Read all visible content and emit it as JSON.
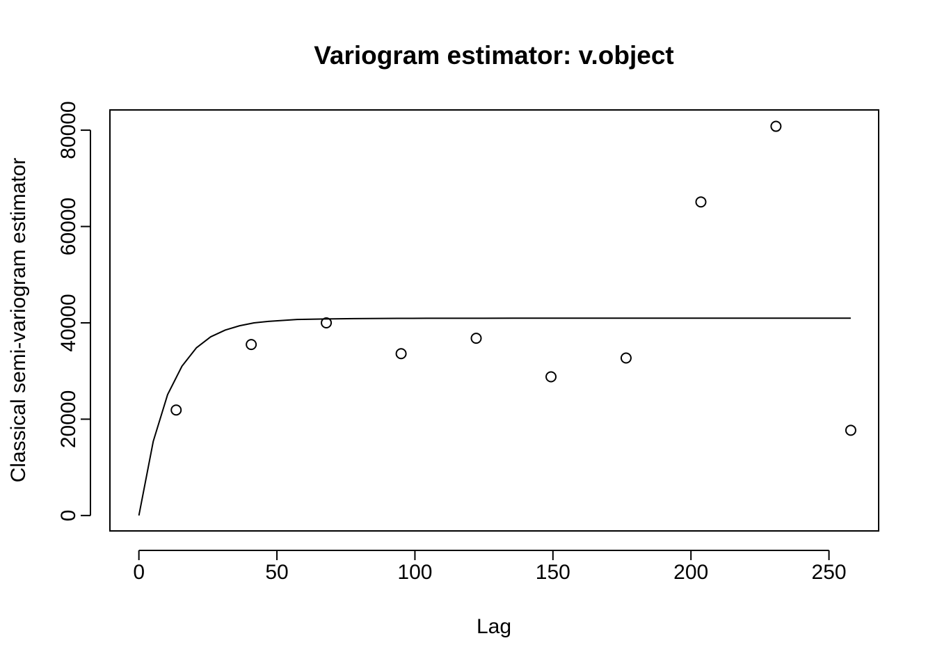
{
  "chart_data": {
    "type": "scatter",
    "title": "Variogram estimator: v.object",
    "xlabel": "Lag",
    "ylabel": "Classical semi-variogram estimator",
    "xlim": [
      -10.5,
      268
    ],
    "ylim": [
      -3200,
      84200
    ],
    "xticks": [
      0,
      50,
      100,
      150,
      200,
      250
    ],
    "yticks": [
      0,
      20000,
      40000,
      60000,
      80000
    ],
    "xtick_labels": [
      "0",
      "50",
      "100",
      "150",
      "200",
      "250"
    ],
    "ytick_labels": [
      "0",
      "20000",
      "40000",
      "60000",
      "80000"
    ],
    "grid": false,
    "box": true,
    "points": {
      "name": "",
      "marker": "open-circle",
      "x": [
        13.5,
        40.7,
        67.9,
        95.0,
        122.2,
        149.3,
        176.5,
        203.6,
        230.8,
        257.9
      ],
      "y": [
        21900,
        35500,
        40000,
        33600,
        36800,
        28800,
        32700,
        65100,
        80800,
        17700
      ]
    },
    "fitted_line": {
      "name": "",
      "x": [
        0,
        5.2,
        10.4,
        15.6,
        20.8,
        26.0,
        31.3,
        36.5,
        41.7,
        46.9,
        52.1,
        57.3,
        62.5,
        67.7,
        72.9,
        78.2,
        83.4,
        88.6,
        93.8,
        99.0,
        104.2,
        114.6,
        125.0,
        135.5,
        145.9,
        156.3,
        166.7,
        177.1,
        187.5,
        197.9,
        208.4,
        218.8,
        229.2,
        239.6,
        250.0,
        257.9
      ],
      "y": [
        0,
        15400,
        25100,
        31000,
        34800,
        37100,
        38500,
        39400,
        40000,
        40300,
        40500,
        40700,
        40750,
        40800,
        40850,
        40880,
        40900,
        40920,
        40930,
        40940,
        40950,
        40960,
        40960,
        40965,
        40970,
        40970,
        40970,
        40975,
        40975,
        40975,
        40975,
        40975,
        40975,
        40975,
        40975,
        40975
      ]
    }
  }
}
